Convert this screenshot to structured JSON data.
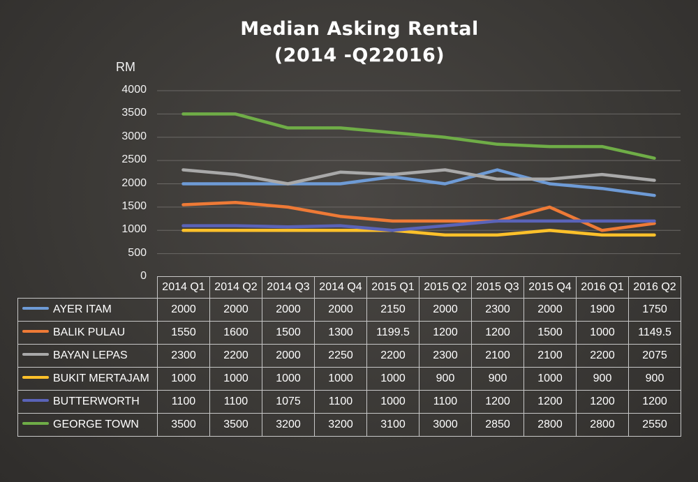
{
  "title_line1": "Median Asking Rental",
  "title_line2": "(2014 -Q22016)",
  "chart_data": {
    "type": "line",
    "title": "Median Asking Rental (2014 -Q22016)",
    "ylabel": "RM",
    "ylim": [
      0,
      4000
    ],
    "yticks": [
      0,
      500,
      1000,
      1500,
      2000,
      2500,
      3000,
      3500,
      4000
    ],
    "grid": true,
    "legend": "data-table",
    "categories": [
      "2014 Q1",
      "2014 Q2",
      "2014 Q3",
      "2014 Q4",
      "2015 Q1",
      "2015 Q2",
      "2015 Q3",
      "2015 Q4",
      "2016 Q1",
      "2016 Q2"
    ],
    "series": [
      {
        "name": "AYER ITAM",
        "color": "#6e9bd6",
        "values": [
          2000,
          2000,
          2000,
          2000,
          2150,
          2000,
          2300,
          2000,
          1900,
          1750
        ]
      },
      {
        "name": "BALIK PULAU",
        "color": "#ee7a36",
        "values": [
          1550,
          1600,
          1500,
          1300,
          1199.5,
          1200,
          1200,
          1500,
          1000,
          1149.5
        ]
      },
      {
        "name": "BAYAN LEPAS",
        "color": "#a9a9a9",
        "values": [
          2300,
          2200,
          2000,
          2250,
          2200,
          2300,
          2100,
          2100,
          2200,
          2075
        ]
      },
      {
        "name": "BUKIT MERTAJAM",
        "color": "#ffc12a",
        "values": [
          1000,
          1000,
          1000,
          1000,
          1000,
          900,
          900,
          1000,
          900,
          900
        ]
      },
      {
        "name": "BUTTERWORTH",
        "color": "#5a63b8",
        "values": [
          1100,
          1100,
          1075,
          1100,
          1000,
          1100,
          1200,
          1200,
          1200,
          1200
        ]
      },
      {
        "name": "GEORGE TOWN",
        "color": "#6fad47",
        "values": [
          3500,
          3500,
          3200,
          3200,
          3100,
          3000,
          2850,
          2800,
          2800,
          2550
        ]
      }
    ]
  }
}
